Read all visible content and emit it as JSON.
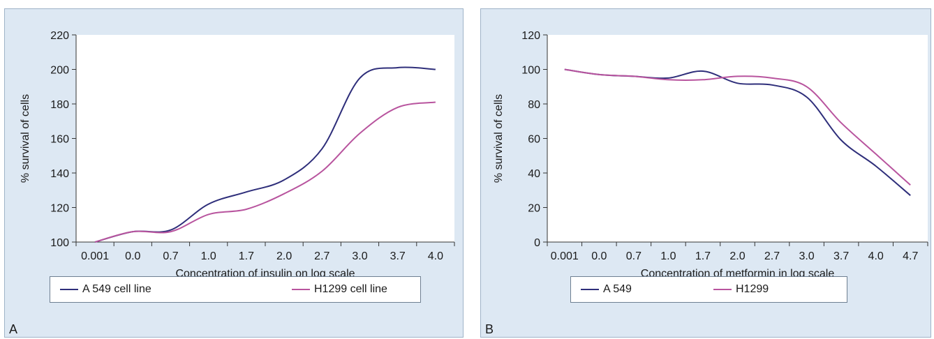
{
  "colors": {
    "a549": "#2e2e7a",
    "h1299": "#b8549e",
    "panel_bg": "#dde8f3",
    "plot_bg": "#ffffff"
  },
  "chart_data": [
    {
      "type": "line",
      "panel_label": "A",
      "xlabel": "Concentration of insulin on log scale",
      "ylabel": "% survival of cells",
      "categories": [
        "0.001",
        "0.0",
        "0.7",
        "1.0",
        "1.7",
        "2.0",
        "2.7",
        "3.0",
        "3.7",
        "4.0"
      ],
      "ylim": [
        100,
        220
      ],
      "yticks": [
        100,
        120,
        140,
        160,
        180,
        200,
        220
      ],
      "grid": false,
      "legend_position": "bottom",
      "series": [
        {
          "name": "A 549 cell line",
          "color": "#2e2e7a",
          "values": [
            100,
            106,
            107,
            122,
            129,
            136,
            154,
            195,
            201,
            200
          ]
        },
        {
          "name": "H1299 cell line",
          "color": "#b8549e",
          "values": [
            100,
            106,
            106,
            116,
            119,
            128,
            141,
            163,
            178,
            181
          ]
        }
      ]
    },
    {
      "type": "line",
      "panel_label": "B",
      "xlabel": "Concentration of metformin in log scale",
      "ylabel": "% survival of cells",
      "categories": [
        "0.001",
        "0.0",
        "0.7",
        "1.0",
        "1.7",
        "2.0",
        "2.7",
        "3.0",
        "3.7",
        "4.0",
        "4.7"
      ],
      "ylim": [
        0,
        120
      ],
      "yticks": [
        0,
        20,
        40,
        60,
        80,
        100,
        120
      ],
      "grid": false,
      "legend_position": "bottom",
      "series": [
        {
          "name": "A 549",
          "color": "#2e2e7a",
          "values": [
            100,
            97,
            96,
            95,
            99,
            92,
            91,
            84,
            59,
            44,
            27
          ]
        },
        {
          "name": "H1299",
          "color": "#b8549e",
          "values": [
            100,
            97,
            96,
            94,
            94,
            96,
            95,
            90,
            69,
            51,
            33
          ]
        }
      ]
    }
  ]
}
